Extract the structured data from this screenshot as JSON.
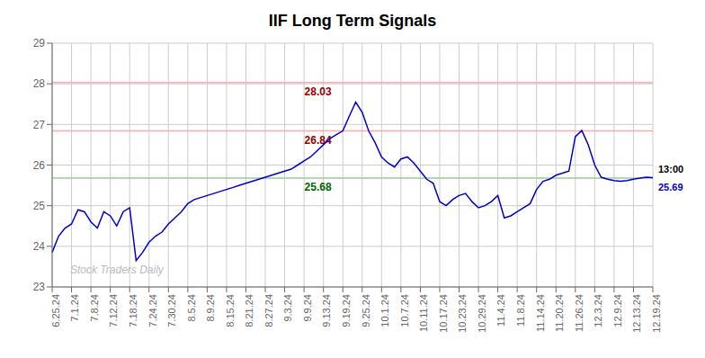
{
  "chart_data": {
    "type": "line",
    "title": "IIF Long Term Signals",
    "categories": [
      "6.25.24",
      null,
      null,
      "7.1.24",
      null,
      null,
      "7.8.24",
      null,
      null,
      "7.12.24",
      null,
      null,
      "7.18.24",
      null,
      null,
      "7.24.24",
      null,
      null,
      "7.30.24",
      null,
      null,
      "8.5.24",
      null,
      null,
      "8.9.24",
      null,
      null,
      "8.15.24",
      null,
      null,
      "8.21.24",
      null,
      null,
      "8.27.24",
      null,
      null,
      "9.3.24",
      null,
      null,
      "9.9.24",
      null,
      null,
      "9.13.24",
      null,
      null,
      "9.19.24",
      null,
      null,
      "9.25.24",
      null,
      null,
      "10.1.24",
      null,
      null,
      "10.7.24",
      null,
      null,
      "10.11.24",
      null,
      null,
      "10.17.24",
      null,
      null,
      "10.23.24",
      null,
      null,
      "10.29.24",
      null,
      null,
      "11.4.24",
      null,
      null,
      "11.8.24",
      null,
      null,
      "11.14.24",
      null,
      null,
      "11.20.24",
      null,
      null,
      "11.26.24",
      null,
      null,
      "12.3.24",
      null,
      null,
      "12.9.24",
      null,
      null,
      "12.13.24",
      null,
      null,
      "12.19.24"
    ],
    "values": [
      23.85,
      24.25,
      24.45,
      24.55,
      24.9,
      24.85,
      24.6,
      24.45,
      24.85,
      24.75,
      24.5,
      24.85,
      24.95,
      23.65,
      23.85,
      24.1,
      24.25,
      24.35,
      24.55,
      24.7,
      24.85,
      25.05,
      25.15,
      25.2,
      25.25,
      25.3,
      25.35,
      25.4,
      25.45,
      25.5,
      25.55,
      25.6,
      25.65,
      25.7,
      25.75,
      25.8,
      25.85,
      25.9,
      26.0,
      26.1,
      26.2,
      26.35,
      26.5,
      26.65,
      26.75,
      26.84,
      27.2,
      27.55,
      27.3,
      26.84,
      26.55,
      26.2,
      26.05,
      25.95,
      26.15,
      26.2,
      26.05,
      25.85,
      25.65,
      25.55,
      25.1,
      25.0,
      25.15,
      25.25,
      25.3,
      25.1,
      24.95,
      25.0,
      25.1,
      25.25,
      24.7,
      24.75,
      24.85,
      24.95,
      25.05,
      25.4,
      25.6,
      25.65,
      25.75,
      25.8,
      25.85,
      26.7,
      26.85,
      26.5,
      26.0,
      25.7,
      25.65,
      25.62,
      25.6,
      25.62,
      25.65,
      25.68,
      25.7,
      25.69
    ],
    "color": "#0000cc",
    "ylim": [
      23,
      29
    ],
    "yticks": [
      23,
      24,
      25,
      26,
      27,
      28,
      29
    ],
    "grid": true,
    "hlines": [
      {
        "value": 28.03,
        "color": "#ffaaaa",
        "label": "28.03",
        "label_color": "#990000"
      },
      {
        "value": 26.84,
        "color": "#ffaaaa",
        "label": "26.84",
        "label_color": "#990000"
      },
      {
        "value": 25.68,
        "color": "#99cc99",
        "label": "25.68",
        "label_color": "#006600"
      }
    ],
    "annotations": [
      {
        "text": "13:00",
        "color": "#000000"
      },
      {
        "text": "25.69",
        "color": "#0000cc"
      }
    ],
    "watermark": "Stock Traders Daily"
  }
}
